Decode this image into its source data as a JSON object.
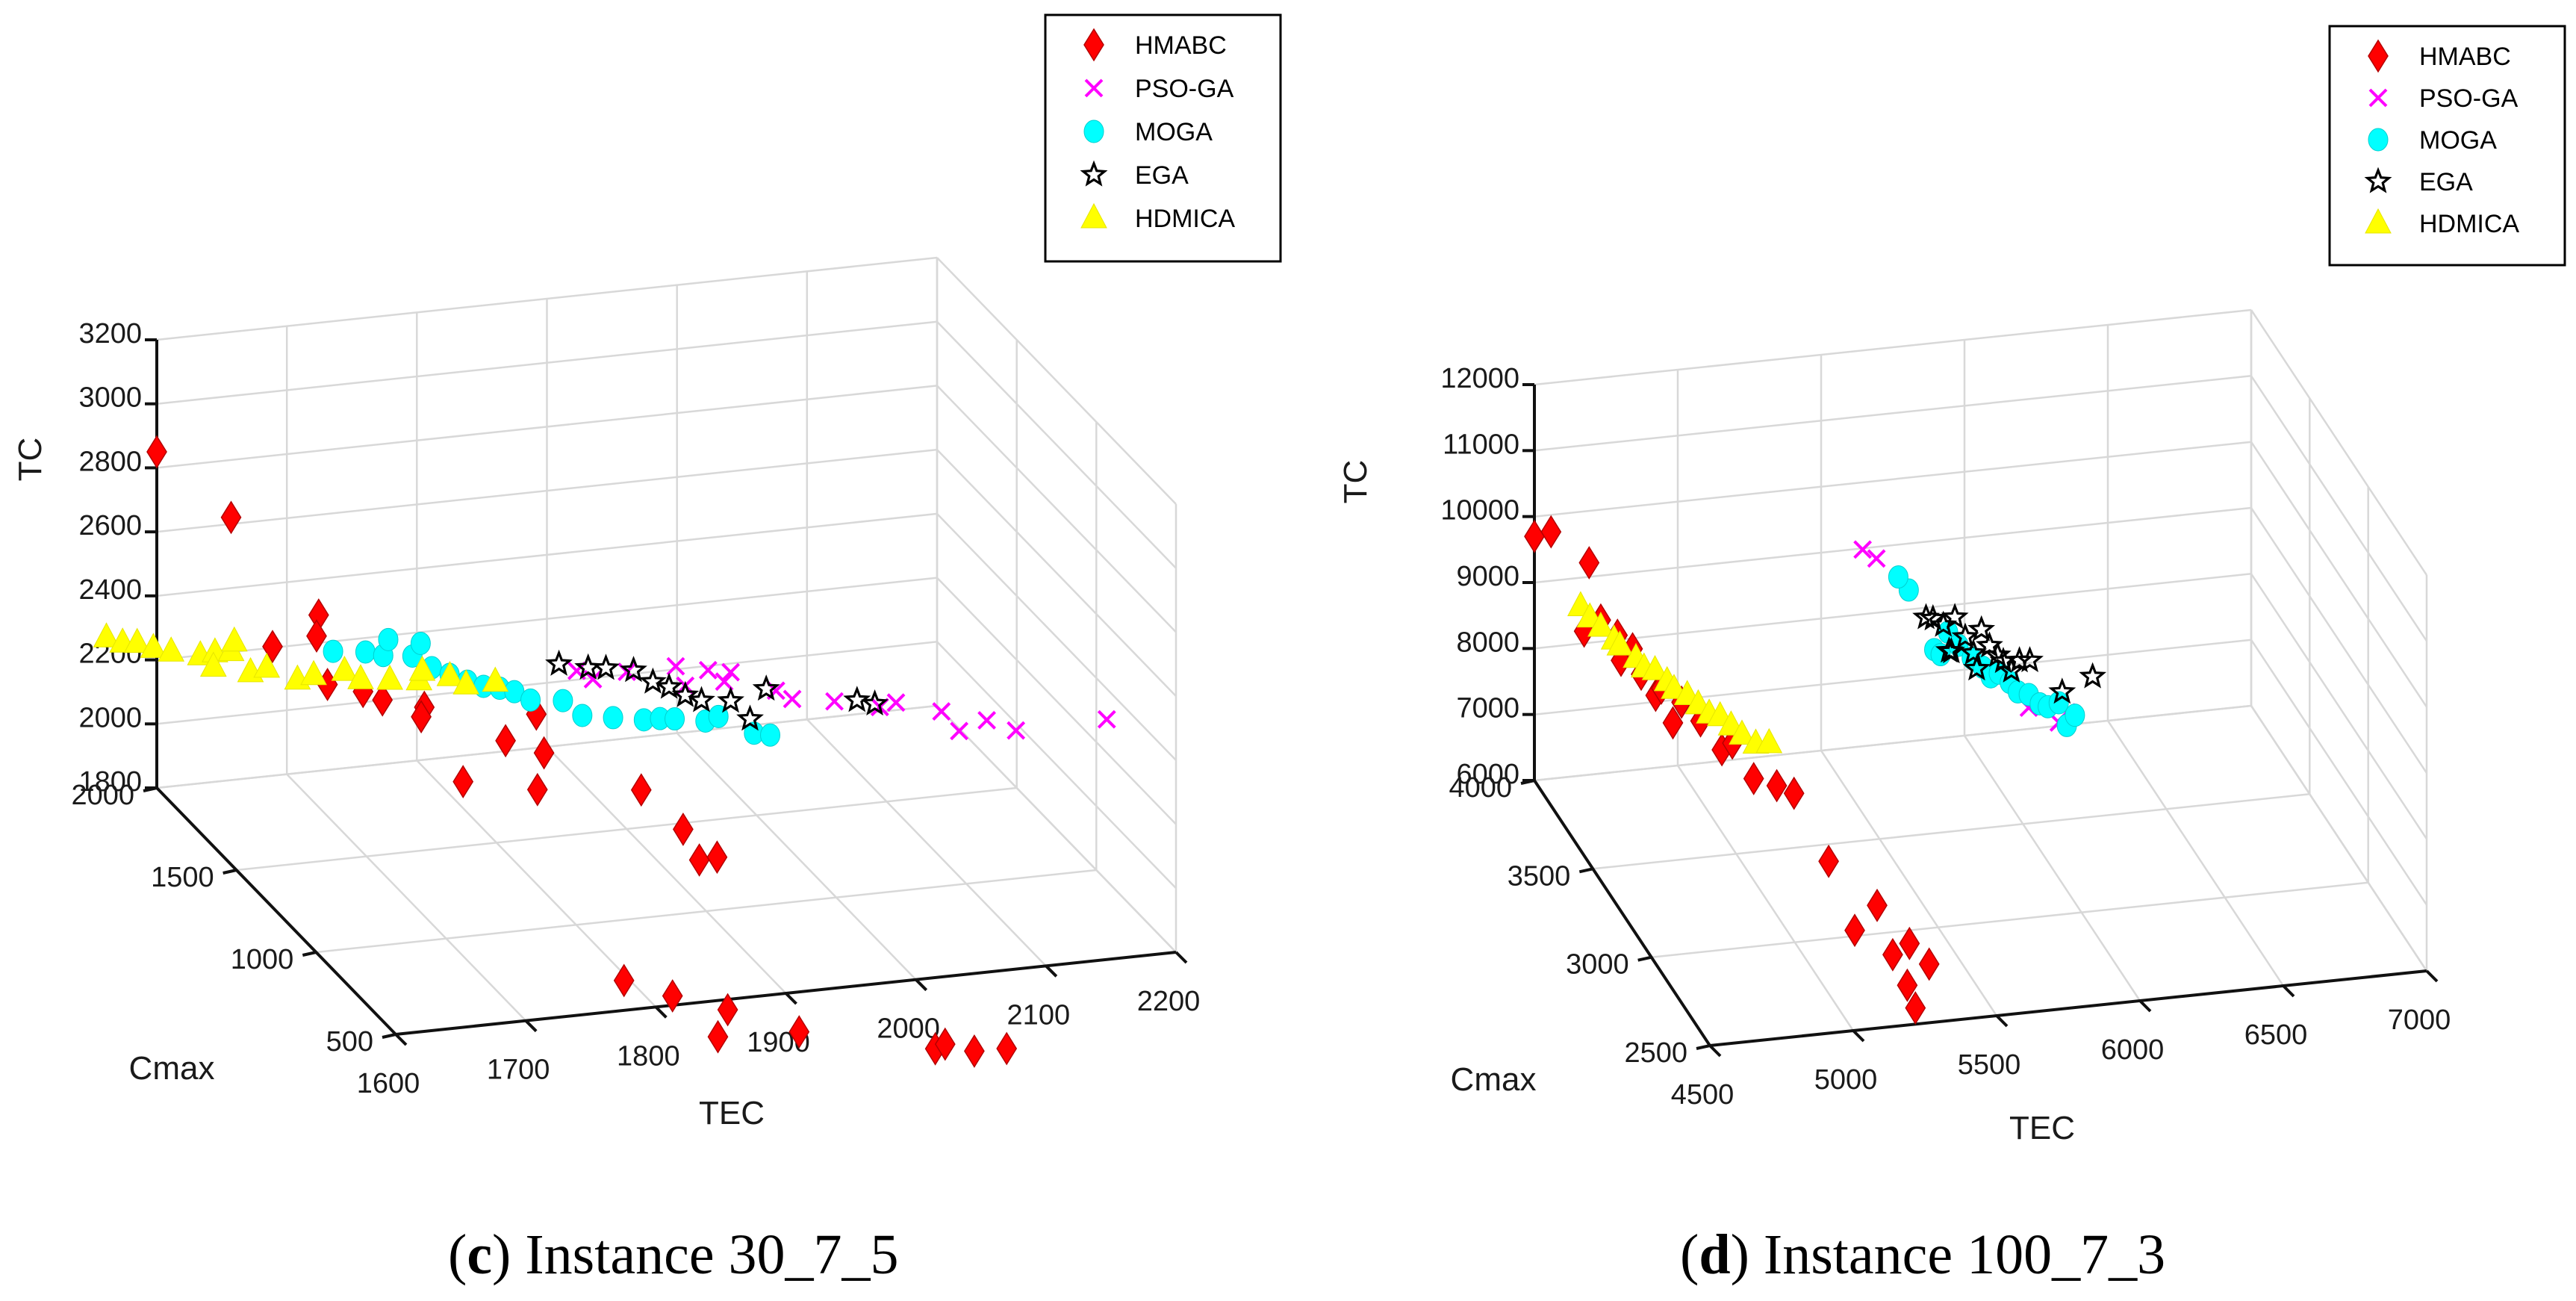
{
  "colors": {
    "HMABC": "#ff0000",
    "PSO-GA": "#ff00ff",
    "MOGA": "#00ffff",
    "EGA": "#000000",
    "HDMICA": "#ffff00"
  },
  "chart_data": [
    {
      "type": "scatter3d",
      "caption_letter": "c",
      "caption_text": " Instance 30_7_5",
      "xlabel": "TEC",
      "ylabel": "Cmax",
      "zlabel": "TC",
      "xlim": [
        1600,
        2200
      ],
      "ylim": [
        500,
        2000
      ],
      "zlim": [
        1800,
        3200
      ],
      "xticks": [
        "1600",
        "1700",
        "1800",
        "1900",
        "2000",
        "2100",
        "2200"
      ],
      "yticks": [
        "500",
        "1000",
        "1500",
        "2000"
      ],
      "zticks": [
        "1800",
        "2000",
        "2200",
        "2400",
        "2600",
        "2800",
        "3000",
        "3200"
      ],
      "grid": true,
      "legend_position": "top-right",
      "series": [
        {
          "name": "HMABC",
          "marker": "diamond",
          "points": [
            [
              1600,
              2000,
              2850
            ],
            [
              1640,
              1860,
              2700
            ],
            [
              1700,
              1800,
              2400
            ],
            [
              1680,
              1650,
              2420
            ],
            [
              1640,
              1600,
              2430
            ],
            [
              1670,
              1500,
              2350
            ],
            [
              1690,
              1440,
              2350
            ],
            [
              1700,
              1400,
              2340
            ],
            [
              1720,
              1300,
              2360
            ],
            [
              1720,
              1320,
              2320
            ],
            [
              1780,
              1280,
              2240
            ],
            [
              1740,
              1220,
              2160
            ],
            [
              1800,
              1250,
              2330
            ],
            [
              1790,
              1120,
              2280
            ],
            [
              1780,
              1080,
              2190
            ],
            [
              1850,
              1000,
              2200
            ],
            [
              1870,
              900,
              2120
            ],
            [
              1880,
              880,
              2030
            ],
            [
              1890,
              850,
              2050
            ],
            [
              1800,
              700,
              1780
            ],
            [
              1830,
              640,
              1750
            ],
            [
              1870,
              620,
              1700
            ],
            [
              1860,
              600,
              1630
            ],
            [
              1920,
              580,
              1630
            ],
            [
              2010,
              460,
              1600
            ],
            [
              2020,
              480,
              1600
            ],
            [
              2040,
              460,
              1580
            ],
            [
              2060,
              420,
              1600
            ]
          ]
        },
        {
          "name": "PSO-GA",
          "marker": "x",
          "points": [
            [
              1760,
              670,
              2780
            ],
            [
              1770,
              650,
              2760
            ],
            [
              1790,
              600,
              2800
            ],
            [
              1830,
              560,
              2760
            ],
            [
              1860,
              520,
              2810
            ],
            [
              1860,
              560,
              2760
            ],
            [
              1890,
              480,
              2760
            ],
            [
              1900,
              460,
              2740
            ],
            [
              1930,
              440,
              2730
            ],
            [
              1960,
              400,
              2720
            ],
            [
              1970,
              380,
              2740
            ],
            [
              2000,
              340,
              2720
            ],
            [
              2010,
              310,
              2670
            ],
            [
              2030,
              300,
              2700
            ],
            [
              2050,
              280,
              2670
            ],
            [
              2110,
              200,
              2720
            ],
            [
              1830,
              620,
              2790
            ],
            [
              1850,
              580,
              2790
            ]
          ]
        },
        {
          "name": "MOGA",
          "marker": "circle",
          "points": [
            [
              1640,
              1220,
              2610
            ],
            [
              1660,
              1180,
              2620
            ],
            [
              1670,
              1150,
              2620
            ],
            [
              1690,
              1130,
              2620
            ],
            [
              1700,
              1090,
              2600
            ],
            [
              1710,
              1060,
              2590
            ],
            [
              1720,
              1030,
              2580
            ],
            [
              1730,
              1010,
              2570
            ],
            [
              1740,
              990,
              2570
            ],
            [
              1750,
              980,
              2560
            ],
            [
              1760,
              960,
              2540
            ],
            [
              1780,
              920,
              2550
            ],
            [
              1790,
              880,
              2520
            ],
            [
              1810,
              850,
              2520
            ],
            [
              1830,
              820,
              2520
            ],
            [
              1840,
              800,
              2530
            ],
            [
              1850,
              790,
              2530
            ],
            [
              1870,
              760,
              2530
            ],
            [
              1880,
              760,
              2540
            ],
            [
              1900,
              700,
              2510
            ],
            [
              1910,
              680,
              2510
            ],
            [
              1680,
              1200,
              2640
            ],
            [
              1700,
              1160,
              2640
            ]
          ]
        },
        {
          "name": "EGA",
          "marker": "star",
          "points": [
            [
              1750,
              700,
              2790
            ],
            [
              1770,
              680,
              2780
            ],
            [
              1780,
              650,
              2790
            ],
            [
              1800,
              640,
              2780
            ],
            [
              1810,
              600,
              2760
            ],
            [
              1820,
              580,
              2750
            ],
            [
              1830,
              560,
              2730
            ],
            [
              1840,
              540,
              2720
            ],
            [
              1860,
              520,
              2720
            ],
            [
              1870,
              480,
              2680
            ],
            [
              1880,
              460,
              2780
            ],
            [
              1940,
              380,
              2760
            ],
            [
              1950,
              350,
              2760
            ]
          ]
        },
        {
          "name": "HDMICA",
          "marker": "triangle",
          "points": [
            [
              1500,
              1500,
              2570
            ],
            [
              1510,
              1480,
              2560
            ],
            [
              1520,
              1470,
              2560
            ],
            [
              1530,
              1450,
              2550
            ],
            [
              1540,
              1420,
              2550
            ],
            [
              1560,
              1400,
              2540
            ],
            [
              1570,
              1390,
              2550
            ],
            [
              1580,
              1370,
              2560
            ],
            [
              1580,
              1350,
              2600
            ],
            [
              1590,
              1330,
              2510
            ],
            [
              1600,
              1310,
              2530
            ],
            [
              1620,
              1280,
              2500
            ],
            [
              1630,
              1260,
              2520
            ],
            [
              1650,
              1230,
              2540
            ],
            [
              1660,
              1210,
              2520
            ],
            [
              1680,
              1190,
              2520
            ],
            [
              1700,
              1170,
              2520
            ],
            [
              1720,
              1140,
              2540
            ],
            [
              1730,
              1120,
              2520
            ],
            [
              1750,
              1100,
              2530
            ],
            [
              1570,
              1400,
              2500
            ],
            [
              1700,
              1150,
              2560
            ]
          ]
        }
      ]
    },
    {
      "type": "scatter3d",
      "caption_letter": "d",
      "caption_text": " Instance 100_7_3",
      "xlabel": "TEC",
      "ylabel": "Cmax",
      "zlabel": "TC",
      "xlim": [
        4500,
        7000
      ],
      "ylim": [
        2500,
        4000
      ],
      "zlim": [
        6000,
        12000
      ],
      "xticks": [
        "4500",
        "5000",
        "5500",
        "6000",
        "6500",
        "7000"
      ],
      "yticks": [
        "2500",
        "3000",
        "3500",
        "4000"
      ],
      "zticks": [
        "6000",
        "7000",
        "8000",
        "9000",
        "10000",
        "11000",
        "12000"
      ],
      "grid": true,
      "legend_position": "top-right",
      "series": [
        {
          "name": "HMABC",
          "marker": "diamond",
          "points": [
            [
              4500,
              4000,
              9700
            ],
            [
              4550,
              3980,
              9800
            ],
            [
              4650,
              3900,
              9500
            ],
            [
              4600,
              3820,
              8700
            ],
            [
              4650,
              3800,
              8900
            ],
            [
              4700,
              3780,
              8700
            ],
            [
              4700,
              3750,
              8400
            ],
            [
              4720,
              3700,
              8700
            ],
            [
              4750,
              3700,
              8300
            ],
            [
              4780,
              3650,
              8100
            ],
            [
              4800,
              3650,
              8200
            ],
            [
              4820,
              3600,
              7800
            ],
            [
              4850,
              3600,
              8100
            ],
            [
              4900,
              3560,
              7900
            ],
            [
              4950,
              3500,
              7600
            ],
            [
              4970,
              3460,
              7800
            ],
            [
              5020,
              3400,
              7400
            ],
            [
              5080,
              3350,
              7400
            ],
            [
              5120,
              3300,
              7400
            ],
            [
              5200,
              3200,
              6600
            ],
            [
              5250,
              3100,
              5800
            ],
            [
              5320,
              3080,
              6200
            ],
            [
              5350,
              3020,
              5600
            ],
            [
              5400,
              3000,
              5800
            ],
            [
              5380,
              2900,
              5100
            ],
            [
              5360,
              2920,
              5400
            ],
            [
              5420,
              2880,
              5800
            ]
          ]
        },
        {
          "name": "PSO-GA",
          "marker": "x",
          "points": [
            [
              5400,
              3400,
              10700
            ],
            [
              5440,
              3380,
              10600
            ],
            [
              5800,
              2960,
              9300
            ],
            [
              5880,
              2900,
              9200
            ],
            [
              5900,
              2880,
              9400
            ]
          ]
        },
        {
          "name": "MOGA",
          "marker": "circle",
          "points": [
            [
              5520,
              3300,
              10300
            ],
            [
              5500,
              3340,
              10400
            ],
            [
              5560,
              3180,
              9700
            ],
            [
              5570,
              3150,
              9700
            ],
            [
              5600,
              3160,
              10000
            ],
            [
              5620,
              3120,
              9900
            ],
            [
              5650,
              3080,
              9800
            ],
            [
              5680,
              3060,
              9700
            ],
            [
              5700,
              3040,
              9600
            ],
            [
              5720,
              3020,
              9700
            ],
            [
              5750,
              3000,
              9600
            ],
            [
              5770,
              2980,
              9500
            ],
            [
              5800,
              2960,
              9500
            ],
            [
              5830,
              2940,
              9400
            ],
            [
              5850,
              2920,
              9400
            ],
            [
              5880,
              2900,
              9500
            ],
            [
              5900,
              2880,
              9200
            ],
            [
              5920,
              2860,
              9400
            ]
          ]
        },
        {
          "name": "EGA",
          "marker": "star",
          "points": [
            [
              5560,
              3250,
              10000
            ],
            [
              5580,
              3240,
              10000
            ],
            [
              5600,
              3200,
              10000
            ],
            [
              5620,
              3200,
              9600
            ],
            [
              5640,
              3200,
              10100
            ],
            [
              5660,
              3160,
              9900
            ],
            [
              5680,
              3140,
              9700
            ],
            [
              5700,
              3120,
              10100
            ],
            [
              5720,
              3100,
              9900
            ],
            [
              5740,
              3080,
              9800
            ],
            [
              5760,
              3080,
              9700
            ],
            [
              5780,
              3060,
              9600
            ],
            [
              5800,
              3040,
              9800
            ],
            [
              5820,
              3000,
              9900
            ],
            [
              5900,
              2920,
              9600
            ],
            [
              5990,
              2880,
              9900
            ],
            [
              5640,
              3230,
              9500
            ],
            [
              5700,
              3160,
              9400
            ]
          ]
        },
        {
          "name": "HDMICA",
          "marker": "triangle",
          "points": [
            [
              4600,
              3850,
              9000
            ],
            [
              4620,
              3820,
              8900
            ],
            [
              4650,
              3800,
              8800
            ],
            [
              4680,
              3760,
              8700
            ],
            [
              4700,
              3760,
              8600
            ],
            [
              4740,
              3720,
              8500
            ],
            [
              4760,
              3700,
              8400
            ],
            [
              4790,
              3680,
              8400
            ],
            [
              4820,
              3650,
              8300
            ],
            [
              4840,
              3640,
              8200
            ],
            [
              4870,
              3600,
              8200
            ],
            [
              4900,
              3580,
              8100
            ],
            [
              4930,
              3560,
              8000
            ],
            [
              4960,
              3540,
              8000
            ],
            [
              4990,
              3520,
              7900
            ],
            [
              5020,
              3500,
              7800
            ],
            [
              5060,
              3480,
              7700
            ],
            [
              5090,
              3440,
              7800
            ]
          ]
        }
      ]
    }
  ]
}
